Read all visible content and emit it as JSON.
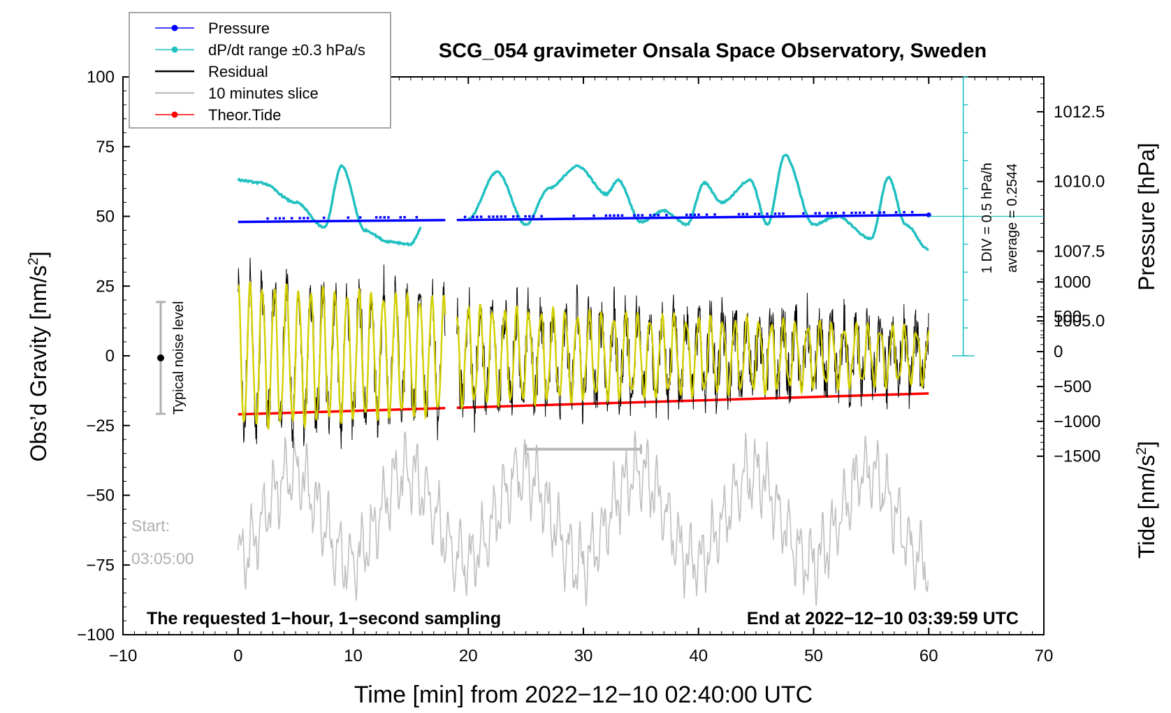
{
  "chart_data": {
    "type": "line",
    "title": "SCG_054 gravimeter Onsala Space Observatory, Sweden",
    "xlabel": "Time [min] from 2022−12−10 02:40:00 UTC",
    "ylabel_left_pre": "Obs’d Gravity [nm/s",
    "ylabel_left_sup": "2",
    "ylabel_left_post": "]",
    "ylabel_right_top": "Pressure [hPa]",
    "ylabel_right_bottom_pre": "Tide [nm/s",
    "ylabel_right_bottom_sup": "2",
    "ylabel_right_bottom_post": "]",
    "xlim": [
      -10,
      70
    ],
    "ylim": [
      -100,
      100
    ],
    "x_ticks": [
      "−10",
      "0",
      "10",
      "20",
      "30",
      "40",
      "50",
      "60",
      "70"
    ],
    "y_ticks": [
      "100",
      "75",
      "50",
      "25",
      "0",
      "−25",
      "−50",
      "−75",
      "−100"
    ],
    "pressure_ticks": [
      "1012.5",
      "1010.0",
      "1007.5",
      "1005.0"
    ],
    "tide_ticks": [
      "1000",
      "500",
      "0",
      "−500",
      "−1000",
      "−1500"
    ],
    "legend": [
      {
        "label": "Pressure",
        "color": "#0000ff",
        "style": "line-dot"
      },
      {
        "label": "dP/dt range ±0.3 hPa/s",
        "color": "#20c0c0",
        "style": "line-dot"
      },
      {
        "label": "Residual",
        "color": "#000000",
        "style": "line"
      },
      {
        "label": "10 minutes slice",
        "color": "#c0c0c0",
        "style": "line"
      },
      {
        "label": "Theor.Tide",
        "color": "#ff0000",
        "style": "line-dot"
      }
    ],
    "annotations": {
      "noise_label": "Typical noise level",
      "scale_label": "1 DIV = 0.5 hPa/h",
      "average_label": "average = 0.2544",
      "start_label": "Start:",
      "start_time": "03:05:00",
      "bottom_left": "The requested 1−hour, 1−second sampling",
      "bottom_right": "End at 2022−12−10 03:39:59 UTC"
    },
    "gap_minutes": [
      18.0,
      19.0
    ],
    "slice_bar_minutes": [
      25,
      35
    ],
    "series": [
      {
        "name": "Pressure",
        "color": "#0000ff",
        "axis": "pressure_hPa",
        "x": [
          0,
          10,
          20,
          30,
          40,
          50,
          60
        ],
        "values": [
          1008.55,
          1008.6,
          1008.62,
          1008.66,
          1008.7,
          1008.75,
          1008.8
        ]
      },
      {
        "name": "dP/dt range ±0.3 hPa/s",
        "color": "#20c0c0",
        "axis": "gravity_nm_s2_display",
        "x": [
          0,
          2,
          5,
          7.5,
          9,
          11,
          13,
          15,
          16,
          20,
          22.5,
          25,
          27,
          29.5,
          32,
          33,
          35,
          37,
          39,
          40.5,
          42,
          44.5,
          46,
          47.5,
          50,
          52,
          55,
          56.5,
          58,
          60
        ],
        "values": [
          63,
          62,
          55,
          46,
          68,
          45,
          41,
          40,
          46,
          49,
          66,
          47,
          60,
          68,
          58,
          63,
          48,
          52,
          47,
          62,
          55,
          63,
          47,
          72,
          47,
          50,
          42,
          64,
          47,
          38
        ]
      },
      {
        "name": "Theor.Tide",
        "color": "#ff0000",
        "axis": "tide_nm_s2",
        "x": [
          0,
          60
        ],
        "values": [
          -900,
          -600
        ]
      },
      {
        "name": "Residual (smoothed)",
        "color": "#d4d000",
        "axis": "gravity_nm_s2",
        "x": [
          0,
          18,
          19,
          60
        ],
        "amplitude": [
          25,
          20,
          17,
          9
        ]
      }
    ]
  }
}
